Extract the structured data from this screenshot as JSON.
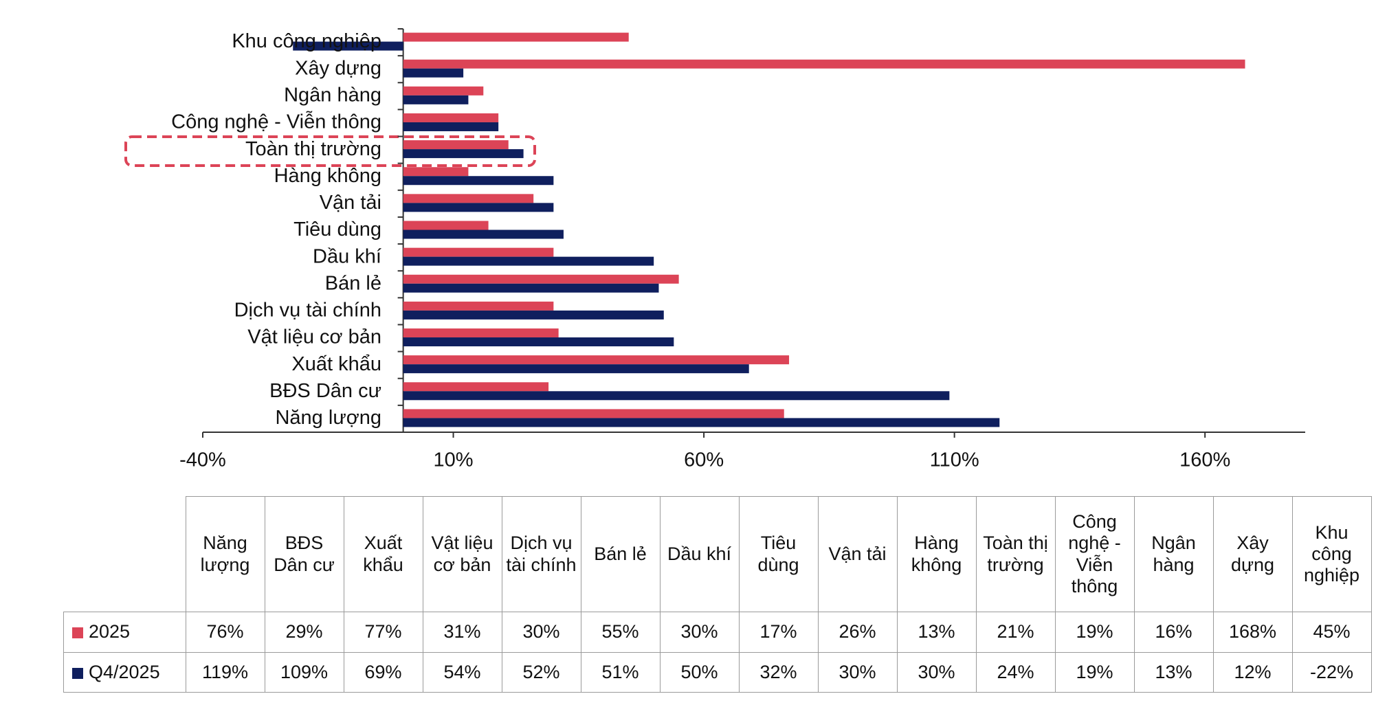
{
  "chart_data": {
    "type": "bar",
    "orientation": "horizontal",
    "categories": [
      "Năng lượng",
      "BĐS Dân cư",
      "Xuất khẩu",
      "Vật liệu cơ bản",
      "Dịch vụ tài chính",
      "Bán lẻ",
      "Dầu khí",
      "Tiêu dùng",
      "Vận tải",
      "Hàng không",
      "Toàn thị trường",
      "Công nghệ - Viễn thông",
      "Ngân hàng",
      "Xây dựng",
      "Khu công nghiệp"
    ],
    "series": [
      {
        "name": "2025",
        "color": "#dc4457",
        "values": [
          76,
          29,
          77,
          31,
          30,
          55,
          30,
          17,
          26,
          13,
          21,
          19,
          16,
          168,
          45
        ],
        "value_labels": [
          "76%",
          "29%",
          "77%",
          "31%",
          "30%",
          "55%",
          "30%",
          "17%",
          "26%",
          "13%",
          "21%",
          "19%",
          "16%",
          "168%",
          "45%"
        ]
      },
      {
        "name": "Q4/2025",
        "color": "#0f1f5e",
        "values": [
          119,
          109,
          69,
          54,
          52,
          51,
          50,
          32,
          30,
          30,
          24,
          19,
          13,
          12,
          -22
        ],
        "value_labels": [
          "119%",
          "109%",
          "69%",
          "54%",
          "52%",
          "51%",
          "50%",
          "32%",
          "30%",
          "30%",
          "24%",
          "19%",
          "13%",
          "12%",
          "-22%"
        ]
      }
    ],
    "xlim": [
      -40,
      180
    ],
    "xticks": [
      {
        "value": -40,
        "label": "-40%"
      },
      {
        "value": 10,
        "label": "10%"
      },
      {
        "value": 60,
        "label": "60%"
      },
      {
        "value": 110,
        "label": "110%"
      },
      {
        "value": 160,
        "label": "160%"
      }
    ],
    "grid": false
  }
}
